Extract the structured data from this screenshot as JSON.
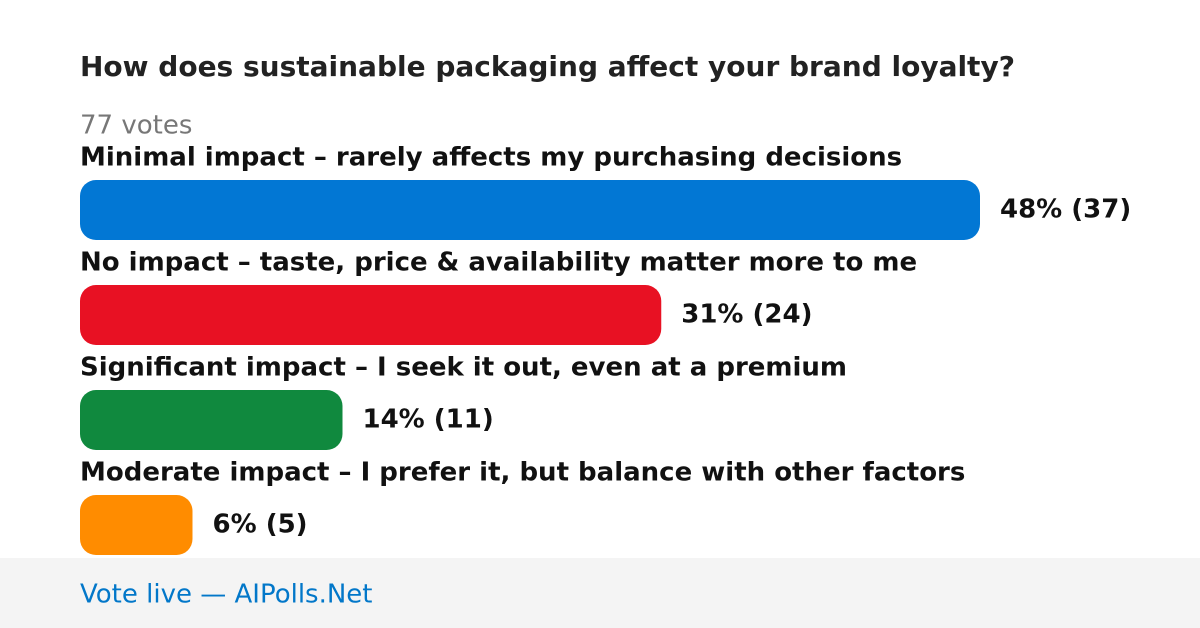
{
  "chart_data": {
    "type": "bar",
    "orientation": "horizontal",
    "title": "How does sustainable packaging affect your brand loyalty?",
    "subtitle": "77 votes",
    "categories": [
      "Minimal impact – rarely affects my purchasing decisions",
      "No impact – taste, price & availability matter more to me",
      "Significant impact – I seek it out, even at a premium",
      "Moderate impact – I prefer it, but balance with other factors"
    ],
    "values": [
      48,
      31,
      14,
      6
    ],
    "value_labels": [
      "48% (37)",
      "31% (24)",
      "14% (11)",
      "6% (5)"
    ],
    "colors": [
      "#0277d4",
      "#e81123",
      "#10893e",
      "#ff8c00"
    ]
  },
  "footer": "Vote live — AIPolls.Net"
}
